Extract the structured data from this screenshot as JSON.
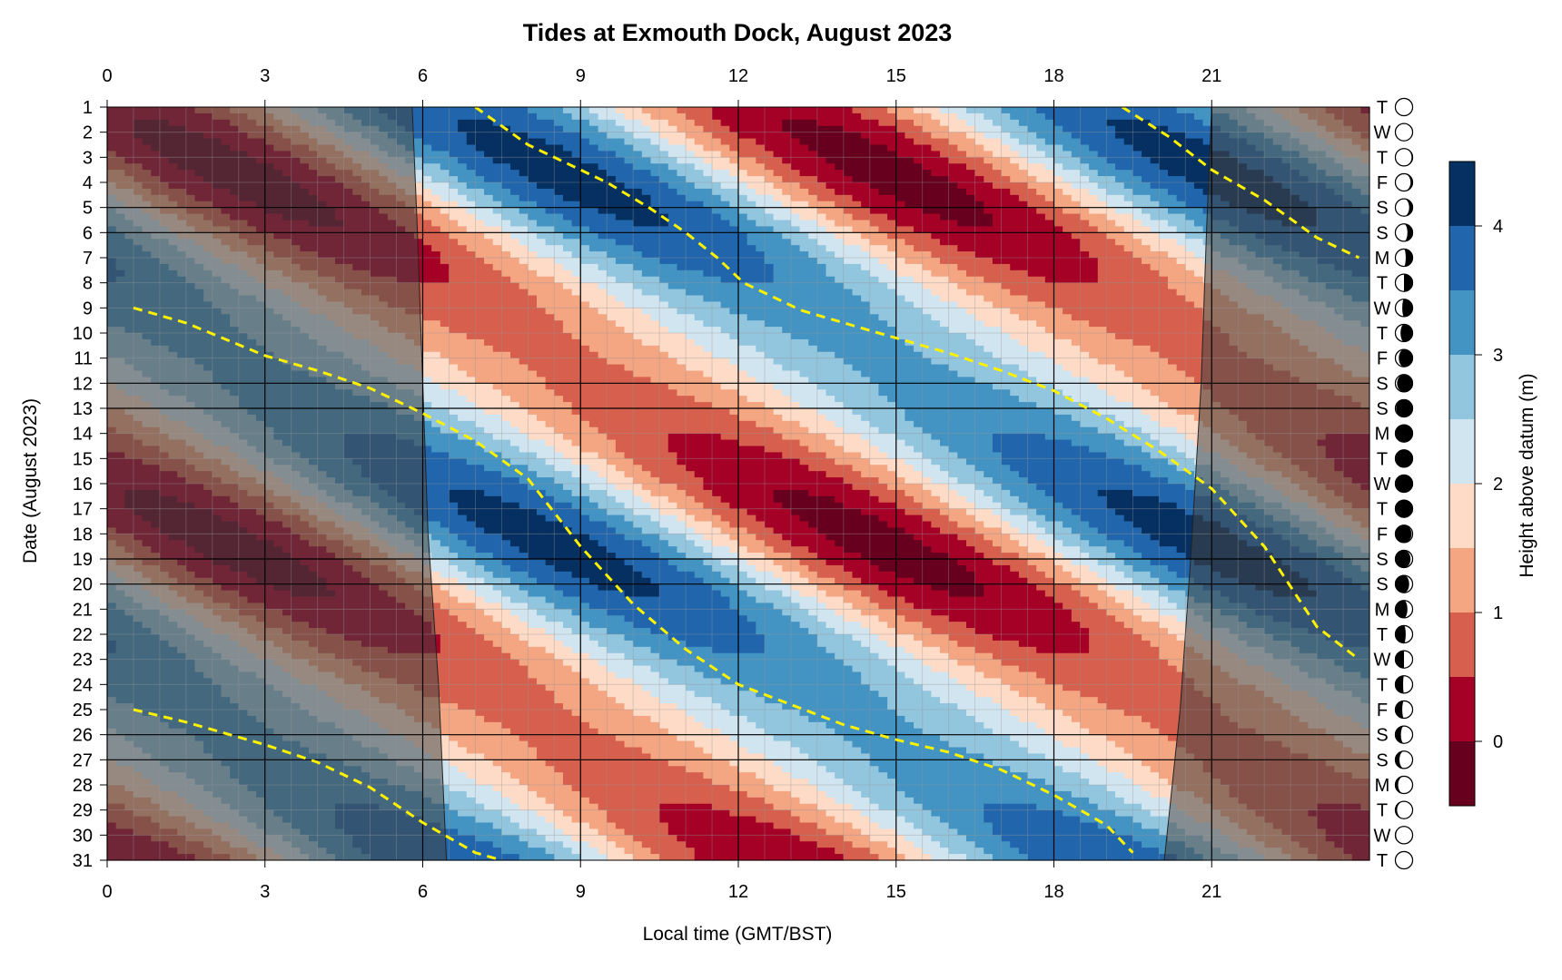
{
  "chart_data": {
    "type": "heatmap",
    "title": "Tides at Exmouth Dock, August 2023",
    "xlabel": "Local time (GMT/BST)",
    "ylabel": "Date (August 2023)",
    "colorbar_label": "Height above datum (m)",
    "xlim": [
      0,
      24
    ],
    "x_ticks": [
      0,
      3,
      6,
      9,
      12,
      15,
      18,
      21
    ],
    "y_ticks": [
      1,
      2,
      3,
      4,
      5,
      6,
      7,
      8,
      9,
      10,
      11,
      12,
      13,
      14,
      15,
      16,
      17,
      18,
      19,
      20,
      21,
      22,
      23,
      24,
      25,
      26,
      27,
      28,
      29,
      30,
      31
    ],
    "weekdays": [
      "T",
      "W",
      "T",
      "F",
      "S",
      "S",
      "M",
      "T",
      "W",
      "T",
      "F",
      "S",
      "S",
      "M",
      "T",
      "W",
      "T",
      "F",
      "S",
      "S",
      "M",
      "T",
      "W",
      "T",
      "F",
      "S",
      "S",
      "M",
      "T",
      "W",
      "T"
    ],
    "moon_illumination": [
      1.0,
      0.98,
      0.94,
      0.88,
      0.8,
      0.7,
      0.6,
      0.5,
      0.4,
      0.3,
      0.2,
      0.1,
      0.04,
      0.0,
      0.02,
      0.0,
      0.02,
      0.06,
      0.12,
      0.2,
      0.3,
      0.4,
      0.5,
      0.55,
      0.6,
      0.68,
      0.76,
      0.84,
      0.9,
      0.96,
      1.0
    ],
    "moon_waxing": [
      false,
      false,
      false,
      false,
      false,
      false,
      false,
      false,
      false,
      false,
      false,
      false,
      false,
      false,
      false,
      true,
      true,
      true,
      true,
      true,
      true,
      true,
      true,
      true,
      true,
      true,
      true,
      true,
      true,
      true,
      true
    ],
    "colorbar": {
      "levels": [
        -0.5,
        0,
        0.5,
        1,
        1.5,
        2,
        2.5,
        3,
        3.5,
        4,
        4.5
      ],
      "colors": [
        "#67001F",
        "#A50026",
        "#D6604D",
        "#F4A582",
        "#FDDBC7",
        "#D1E5F0",
        "#92C5DE",
        "#4393C3",
        "#2166AC",
        "#053061"
      ],
      "ticks": [
        0,
        1,
        2,
        3,
        4
      ]
    },
    "high_water_lines": [
      {
        "name": "",
        "points": [
          [
            7.0,
            1
          ],
          [
            8.0,
            2.5
          ],
          [
            9.5,
            4
          ],
          [
            10.3,
            5
          ],
          [
            11.0,
            6
          ],
          [
            11.6,
            7
          ],
          [
            12.1,
            8
          ],
          [
            13.2,
            9.1
          ]
        ]
      },
      {
        "name": "",
        "points": [
          [
            0.5,
            9
          ],
          [
            1.5,
            9.6
          ],
          [
            3.0,
            10.9
          ],
          [
            4.0,
            11.5
          ],
          [
            5.0,
            12.2
          ],
          [
            6.0,
            13.2
          ],
          [
            7.0,
            14.3
          ],
          [
            8.0,
            15.8
          ],
          [
            9.0,
            18.5
          ],
          [
            10.0,
            20.8
          ],
          [
            11.0,
            22.6
          ],
          [
            12.0,
            24.0
          ],
          [
            13.0,
            24.8
          ],
          [
            14.0,
            25.6
          ],
          [
            15.0,
            26.2
          ],
          [
            16.0,
            26.7
          ],
          [
            17.0,
            27.4
          ],
          [
            18.0,
            28.4
          ],
          [
            19.0,
            29.6
          ],
          [
            19.5,
            30.7
          ]
        ]
      },
      {
        "name": "",
        "points": [
          [
            13.2,
            9.1
          ],
          [
            14.5,
            9.9
          ],
          [
            16.0,
            10.8
          ],
          [
            17.0,
            11.5
          ],
          [
            18.0,
            12.3
          ],
          [
            19.0,
            13.4
          ],
          [
            20.0,
            14.7
          ],
          [
            21.0,
            16.2
          ],
          [
            22.0,
            18.5
          ],
          [
            23.0,
            21.7
          ],
          [
            23.8,
            23.0
          ]
        ]
      },
      {
        "name": "",
        "points": [
          [
            0.5,
            25
          ],
          [
            1.5,
            25.5
          ],
          [
            3.0,
            26.4
          ],
          [
            4.0,
            27.1
          ],
          [
            5.0,
            28.1
          ],
          [
            6.0,
            29.5
          ],
          [
            7.0,
            30.7
          ],
          [
            7.5,
            31.0
          ]
        ]
      },
      {
        "name": "",
        "points": [
          [
            19.3,
            1
          ],
          [
            20.2,
            2.2
          ],
          [
            21.0,
            3.5
          ],
          [
            22.0,
            4.7
          ],
          [
            23.0,
            6.2
          ],
          [
            23.8,
            7.0
          ]
        ]
      }
    ],
    "night_shading": [
      {
        "name": "",
        "points": [
          [
            0,
            1
          ],
          [
            5.8,
            1
          ],
          [
            5.9,
            6
          ],
          [
            6.0,
            12
          ],
          [
            6.1,
            18
          ],
          [
            6.3,
            24
          ],
          [
            6.45,
            31
          ],
          [
            0,
            31
          ]
        ]
      },
      {
        "name": "",
        "points": [
          [
            21.0,
            1
          ],
          [
            24,
            1
          ],
          [
            24,
            31
          ],
          [
            20.1,
            31
          ],
          [
            20.4,
            25
          ],
          [
            20.6,
            19
          ],
          [
            20.8,
            12
          ],
          [
            20.9,
            6
          ]
        ]
      }
    ],
    "tide_model": {
      "mean": 2.0,
      "amp_base": 1.65,
      "amp_spring": 0.55,
      "spring_days": [
        3.5,
        18.5
      ],
      "hw_anchor_day": 9.1,
      "hw_anchor_hour": 13.2,
      "hw_daily_shift": 0.83
    },
    "grid": true
  }
}
